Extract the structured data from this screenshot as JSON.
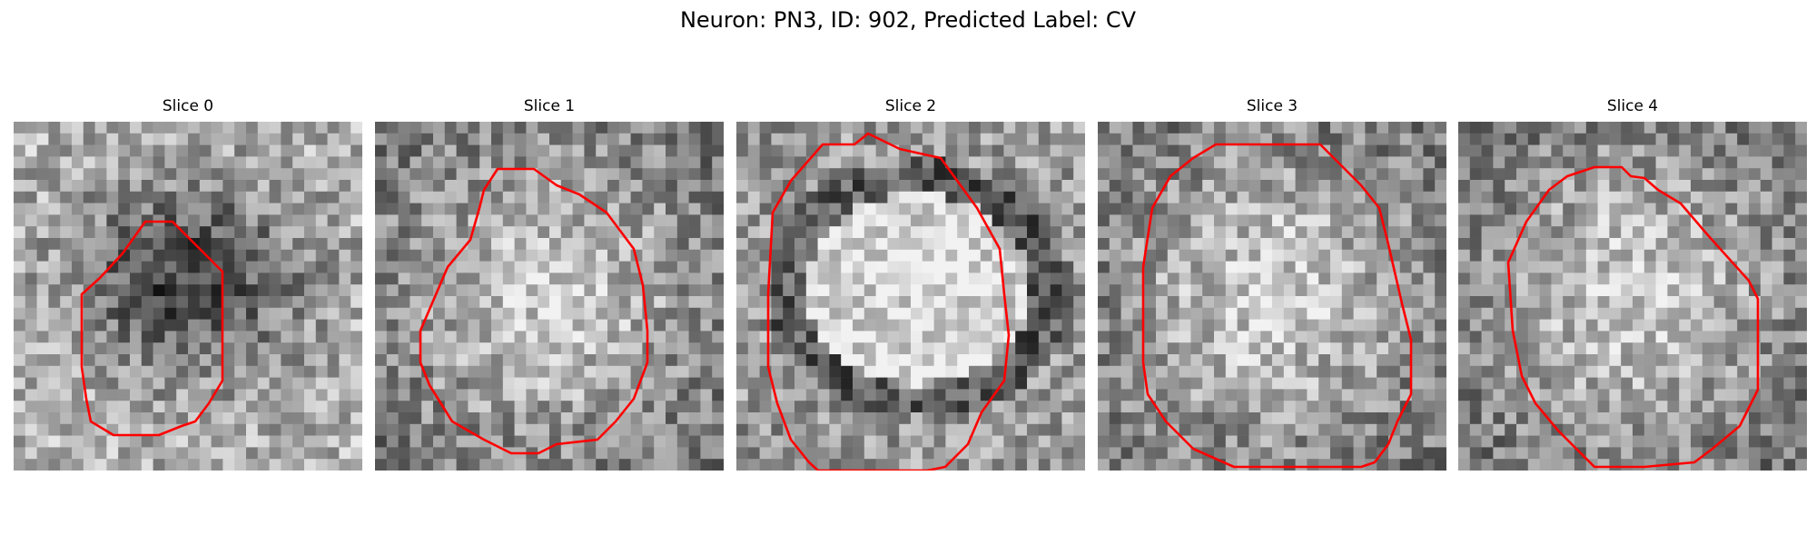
{
  "figure": {
    "title": "Neuron: PN3, ID: 902, Predicted Label: CV",
    "contour_color": "#ff0000",
    "colormap": "gray",
    "panels": [
      {
        "title": "Slice 0",
        "seed": 11,
        "blob": "dark-center"
      },
      {
        "title": "Slice 1",
        "seed": 23,
        "blob": "light-center"
      },
      {
        "title": "Slice 2",
        "seed": 37,
        "blob": "bright-oval-dark-ring"
      },
      {
        "title": "Slice 3",
        "seed": 41,
        "blob": "light-center"
      },
      {
        "title": "Slice 4",
        "seed": 53,
        "blob": "light-center"
      }
    ]
  }
}
